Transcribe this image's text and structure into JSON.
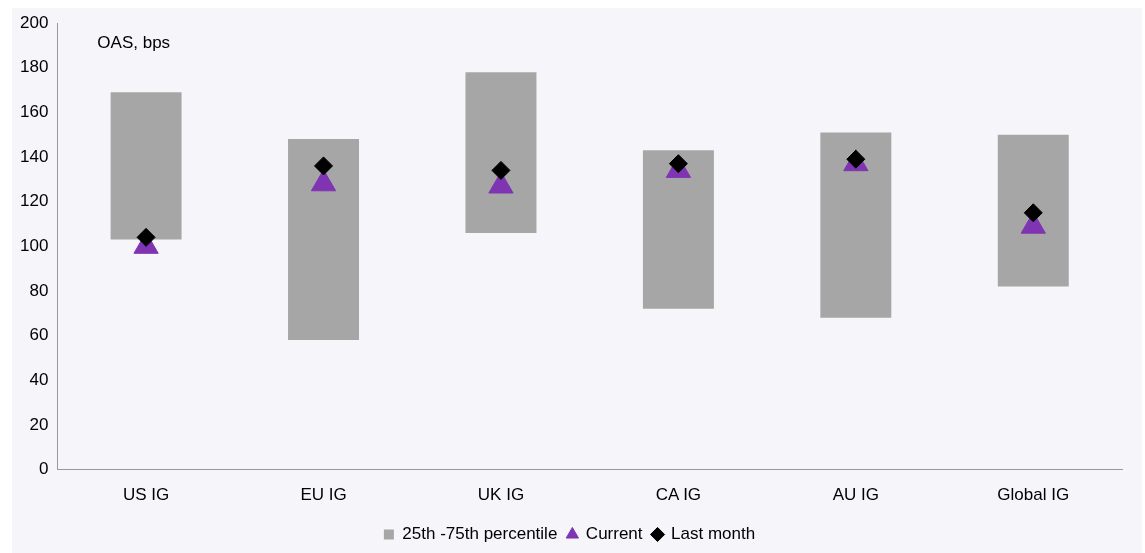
{
  "chart_data": {
    "type": "bar",
    "categories": [
      "US IG",
      "EU IG",
      "UK IG",
      "CA IG",
      "AU IG",
      "Global IG"
    ],
    "series": [
      {
        "name": "25th -75th percentile",
        "color": "#a6a6a6",
        "base": [
          103,
          58,
          106,
          72,
          68,
          82
        ],
        "values": [
          66,
          90,
          72,
          71,
          83,
          68
        ]
      },
      {
        "name": "Current",
        "type": "scatter",
        "marker": "triangle",
        "color": "#7f35b2",
        "x": [
          "US IG",
          "EU IG",
          "UK IG",
          "CA IG",
          "AU IG",
          "Global IG"
        ],
        "values": [
          100,
          128,
          127,
          134,
          137,
          109
        ]
      },
      {
        "name": "Last month",
        "type": "scatter",
        "marker": "diamond",
        "color": "#000000",
        "x": [
          "US IG",
          "EU IG",
          "UK IG",
          "CA IG",
          "AU IG",
          "Global IG"
        ],
        "values": [
          104,
          136,
          134,
          137,
          139,
          115
        ]
      }
    ],
    "ylim": [
      0,
      200
    ],
    "yticks": [
      0,
      20,
      40,
      60,
      80,
      100,
      120,
      140,
      160,
      180,
      200
    ],
    "grid": false,
    "legend": "bottom",
    "annotations": [
      "OAS, bps"
    ]
  }
}
